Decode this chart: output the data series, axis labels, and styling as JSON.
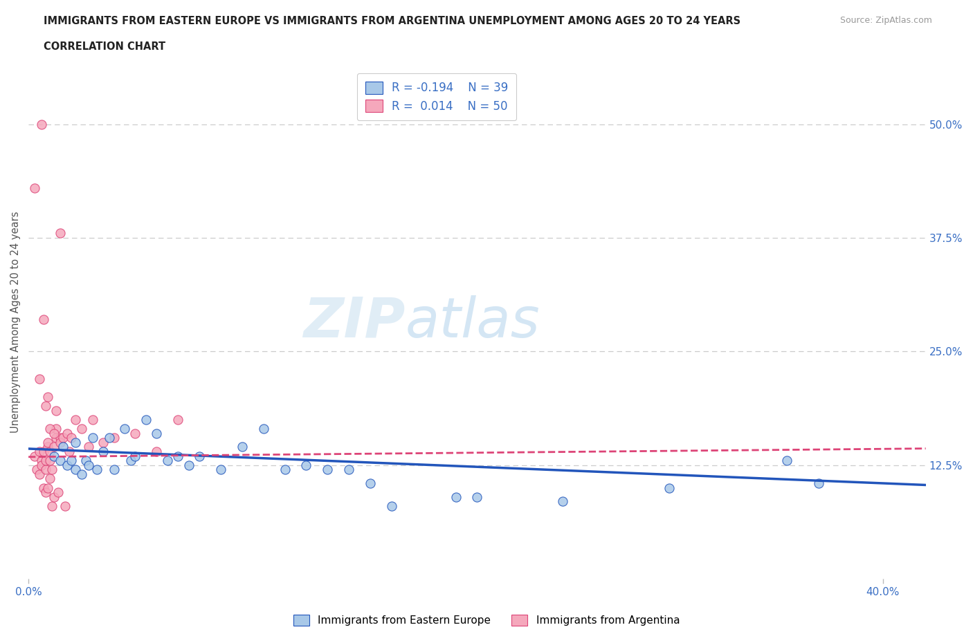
{
  "title_line1": "IMMIGRANTS FROM EASTERN EUROPE VS IMMIGRANTS FROM ARGENTINA UNEMPLOYMENT AMONG AGES 20 TO 24 YEARS",
  "title_line2": "CORRELATION CHART",
  "source_text": "Source: ZipAtlas.com",
  "ylabel": "Unemployment Among Ages 20 to 24 years",
  "xlim": [
    0.0,
    0.42
  ],
  "ylim": [
    0.0,
    0.565
  ],
  "ytick_positions": [
    0.125,
    0.25,
    0.375,
    0.5
  ],
  "ytick_labels": [
    "12.5%",
    "25.0%",
    "37.5%",
    "50.0%"
  ],
  "grid_color": "#cccccc",
  "background_color": "#ffffff",
  "watermark_zip": "ZIP",
  "watermark_atlas": "atlas",
  "legend_r1": "R = -0.194",
  "legend_n1": "N = 39",
  "legend_r2": "R =  0.014",
  "legend_n2": "N = 50",
  "color_eastern": "#a8c8e8",
  "color_argentina": "#f5a8bc",
  "color_trendline_eastern": "#2255bb",
  "color_trendline_argentina": "#dd4477",
  "eastern_x": [
    0.012,
    0.015,
    0.016,
    0.018,
    0.02,
    0.022,
    0.022,
    0.025,
    0.027,
    0.028,
    0.03,
    0.032,
    0.035,
    0.038,
    0.04,
    0.045,
    0.048,
    0.05,
    0.055,
    0.06,
    0.065,
    0.07,
    0.075,
    0.08,
    0.09,
    0.1,
    0.11,
    0.12,
    0.13,
    0.14,
    0.15,
    0.16,
    0.17,
    0.2,
    0.21,
    0.25,
    0.3,
    0.355,
    0.37
  ],
  "eastern_y": [
    0.135,
    0.13,
    0.145,
    0.125,
    0.13,
    0.12,
    0.15,
    0.115,
    0.13,
    0.125,
    0.155,
    0.12,
    0.14,
    0.155,
    0.12,
    0.165,
    0.13,
    0.135,
    0.175,
    0.16,
    0.13,
    0.135,
    0.125,
    0.135,
    0.12,
    0.145,
    0.165,
    0.12,
    0.125,
    0.12,
    0.12,
    0.105,
    0.08,
    0.09,
    0.09,
    0.085,
    0.1,
    0.13,
    0.105
  ],
  "argentina_x": [
    0.003,
    0.004,
    0.005,
    0.005,
    0.006,
    0.006,
    0.007,
    0.007,
    0.008,
    0.008,
    0.008,
    0.009,
    0.009,
    0.009,
    0.01,
    0.01,
    0.01,
    0.011,
    0.011,
    0.012,
    0.012,
    0.013,
    0.013,
    0.014,
    0.015,
    0.015,
    0.016,
    0.017,
    0.018,
    0.019,
    0.02,
    0.022,
    0.025,
    0.028,
    0.03,
    0.035,
    0.04,
    0.05,
    0.06,
    0.07,
    0.005,
    0.007,
    0.008,
    0.009,
    0.01,
    0.012,
    0.013,
    0.015,
    0.003,
    0.006
  ],
  "argentina_y": [
    0.135,
    0.12,
    0.14,
    0.115,
    0.13,
    0.125,
    0.1,
    0.14,
    0.12,
    0.095,
    0.13,
    0.145,
    0.1,
    0.15,
    0.13,
    0.11,
    0.14,
    0.12,
    0.08,
    0.09,
    0.145,
    0.155,
    0.165,
    0.095,
    0.155,
    0.15,
    0.155,
    0.08,
    0.16,
    0.14,
    0.155,
    0.175,
    0.165,
    0.145,
    0.175,
    0.15,
    0.155,
    0.16,
    0.14,
    0.175,
    0.22,
    0.285,
    0.19,
    0.2,
    0.165,
    0.16,
    0.185,
    0.38,
    0.43,
    0.5
  ]
}
